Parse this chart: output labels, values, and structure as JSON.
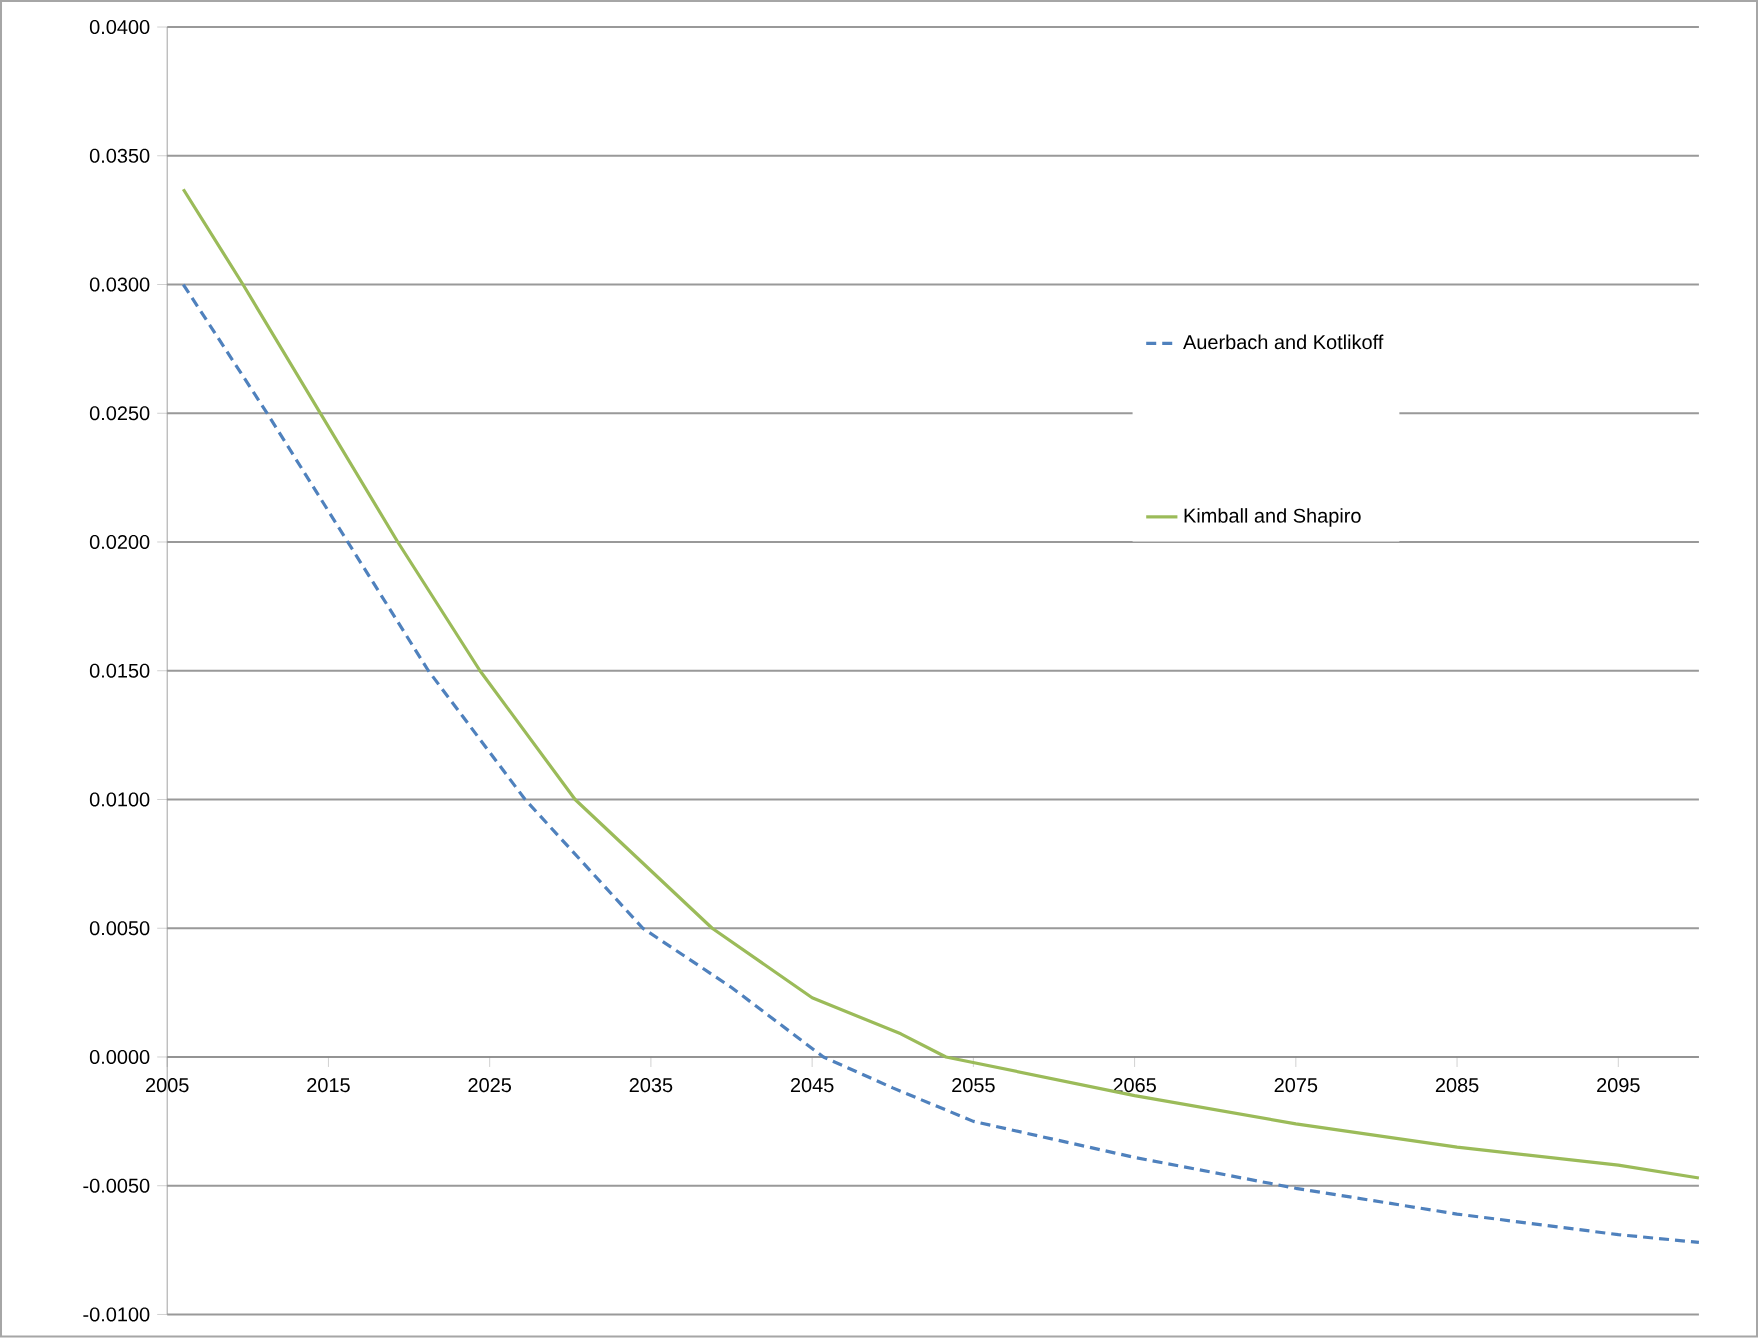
{
  "chart_data": {
    "type": "line",
    "series": [
      {
        "name": "Auerbach and Kotlikoff",
        "color": "#4f81bd",
        "line_style": "dashed",
        "x": [
          2006,
          2011.2,
          2016.2,
          2021.2,
          2027.2,
          2034.5,
          2040,
          2045.7,
          2050,
          2055,
          2065,
          2075,
          2085,
          2095,
          2100
        ],
        "values": [
          0.03,
          0.025,
          0.02,
          0.015,
          0.01,
          0.005,
          0.0027,
          0.0,
          -0.0012,
          -0.0025,
          -0.0039,
          -0.0051,
          -0.0061,
          -0.0069,
          -0.0072
        ]
      },
      {
        "name": "Kimball and Shapiro",
        "color": "#9bbb59",
        "line_style": "solid",
        "x": [
          2006,
          2009.7,
          2014.5,
          2019.3,
          2024.4,
          2030.3,
          2038.8,
          2045,
          2050.5,
          2053.3,
          2065,
          2075,
          2085,
          2095,
          2100
        ],
        "values": [
          0.0337,
          0.03,
          0.025,
          0.02,
          0.015,
          0.01,
          0.005,
          0.0023,
          0.0009,
          0.0,
          -0.0015,
          -0.0026,
          -0.0035,
          -0.0042,
          -0.0047
        ]
      }
    ],
    "xlim": [
      2005,
      2100
    ],
    "xticks": [
      2005,
      2015,
      2025,
      2035,
      2045,
      2055,
      2065,
      2075,
      2085,
      2095
    ],
    "ylim": [
      -0.01,
      0.04
    ],
    "yticks": [
      {
        "value": -0.01,
        "label": "-0.0100"
      },
      {
        "value": -0.005,
        "label": "-0.0050"
      },
      {
        "value": 0,
        "label": "0.0000"
      },
      {
        "value": 0.005,
        "label": "0.0050"
      },
      {
        "value": 0.01,
        "label": "0.0100"
      },
      {
        "value": 0.015,
        "label": "0.0150"
      },
      {
        "value": 0.02,
        "label": "0.0200"
      },
      {
        "value": 0.025,
        "label": "0.0250"
      },
      {
        "value": 0.03,
        "label": "0.0300"
      },
      {
        "value": 0.035,
        "label": "0.0350"
      },
      {
        "value": 0.04,
        "label": "0.0400"
      }
    ],
    "grid": "y",
    "legend": "right",
    "marker": "none"
  }
}
